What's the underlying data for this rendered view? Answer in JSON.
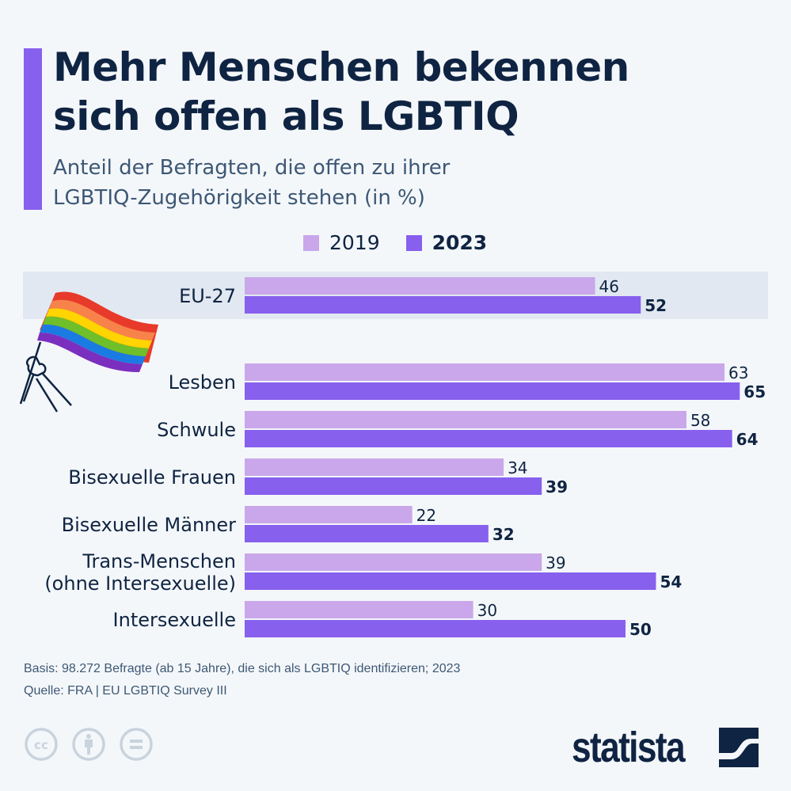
{
  "header": {
    "title_line1": "Mehr Menschen bekennen",
    "title_line2": "sich offen als LGBTIQ",
    "subtitle_line1": "Anteil der Befragten, die offen zu ihrer",
    "subtitle_line2": "LGBTIQ-Zugehörigkeit stehen (in %)"
  },
  "colors": {
    "accent": "#8760ee",
    "series_2019": "#c9a7ea",
    "series_2023": "#8760ee",
    "text": "#0f2442",
    "highlight_band": "#e1e8f1"
  },
  "legend": [
    {
      "label": "2019",
      "color": "#c9a7ea",
      "bold": false
    },
    {
      "label": "2023",
      "color": "#8760ee",
      "bold": true
    }
  ],
  "chart_data": {
    "type": "bar",
    "orientation": "horizontal",
    "title": "Mehr Menschen bekennen sich offen als LGBTIQ",
    "subtitle": "Anteil der Befragten, die offen zu ihrer LGBTIQ-Zugehörigkeit stehen (in %)",
    "xlabel": "",
    "ylabel": "",
    "unit": "%",
    "xlim": [
      0,
      100
    ],
    "grid": false,
    "legend_position": "top-center",
    "highlighted_category": "EU-27",
    "categories": [
      [
        "EU-27"
      ],
      [
        "Lesben"
      ],
      [
        "Schwule"
      ],
      [
        "Bisexuelle Frauen"
      ],
      [
        "Bisexuelle Männer"
      ],
      [
        "Trans-Menschen",
        "(ohne Intersexuelle)"
      ],
      [
        "Intersexuelle"
      ]
    ],
    "series": [
      {
        "name": "2019",
        "values": [
          46,
          63,
          58,
          34,
          22,
          39,
          30
        ]
      },
      {
        "name": "2023",
        "values": [
          52,
          65,
          64,
          39,
          32,
          54,
          50
        ]
      }
    ]
  },
  "footer": {
    "basis": "Basis: 98.272 Befragte (ab 15 Jahre), die sich als LGBTIQ identifizieren; 2023",
    "source": "Quelle: FRA | EU LGBTIQ Survey III"
  },
  "branding": {
    "logo_text": "statista",
    "license_icons": [
      "cc-icon",
      "attribution-icon",
      "no-derivatives-icon"
    ]
  }
}
